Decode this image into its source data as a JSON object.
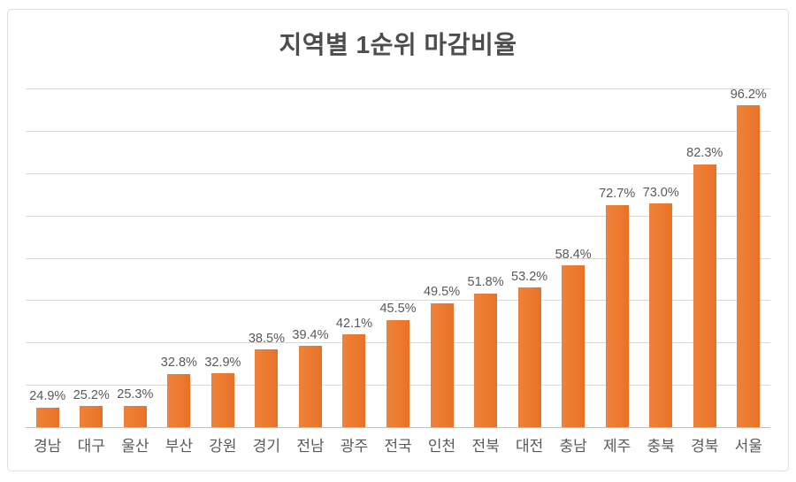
{
  "chart_data": {
    "type": "bar",
    "title": "지역별 1순위 마감비율",
    "categories": [
      "경남",
      "대구",
      "울산",
      "부산",
      "강원",
      "경기",
      "전남",
      "광주",
      "전국",
      "인천",
      "전북",
      "대전",
      "충남",
      "제주",
      "충북",
      "경북",
      "서울"
    ],
    "values": [
      24.9,
      25.2,
      25.3,
      32.8,
      32.9,
      38.5,
      39.4,
      42.1,
      45.5,
      49.5,
      51.8,
      53.2,
      58.4,
      72.7,
      73.0,
      82.3,
      96.2
    ],
    "data_labels": [
      "24.9%",
      "25.2%",
      "25.3%",
      "32.8%",
      "32.9%",
      "38.5%",
      "39.4%",
      "42.1%",
      "45.5%",
      "49.5%",
      "51.8%",
      "53.2%",
      "58.4%",
      "72.7%",
      "73.0%",
      "82.3%",
      "96.2%"
    ],
    "xlabel": "",
    "ylabel": "",
    "ylim": [
      20,
      100
    ],
    "gridline_interval": 10,
    "grid": true,
    "legend_position": "none",
    "y_axis_labels_visible": false,
    "colors": {
      "bar": "#ED7D31",
      "gridline": "#D9D9D9",
      "axis_line": "#BFBFBF",
      "title_text": "#4D4D4D",
      "label_text": "#595959",
      "frame_border": "#DEDEDE",
      "background": "#FFFFFF"
    }
  }
}
